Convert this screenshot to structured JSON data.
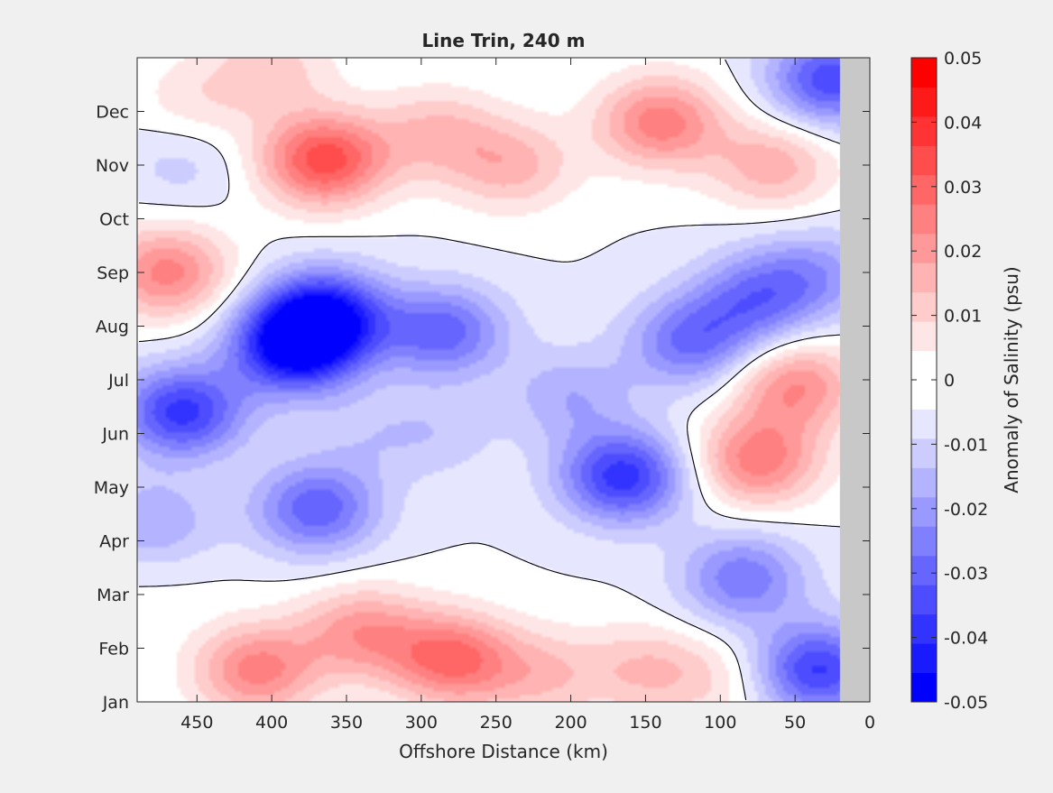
{
  "chart_data": {
    "type": "heatmap",
    "title": "Line Trin, 240 m",
    "xlabel": "Offshore Distance (km)",
    "ylabel": "",
    "xlim": [
      490,
      0
    ],
    "x_reversed": true,
    "xticks": [
      450,
      400,
      350,
      300,
      250,
      200,
      150,
      100,
      50,
      0
    ],
    "yticks": [
      "Jan",
      "Feb",
      "Mar",
      "Apr",
      "May",
      "Jun",
      "Jul",
      "Aug",
      "Sep",
      "Oct",
      "Nov",
      "Dec"
    ],
    "no_data_region_km": [
      0,
      20
    ],
    "colorbar": {
      "label": "Anomaly of Salinity (psu)",
      "range": [
        -0.05,
        0.05
      ],
      "tick_labels": [
        "0.05",
        "0.04",
        "0.03",
        "0.02",
        "0.01",
        "0",
        "-0.01",
        "-0.02",
        "-0.03",
        "-0.04",
        "-0.05"
      ],
      "levels": [
        -0.05,
        -0.045,
        -0.04,
        -0.035,
        -0.03,
        -0.025,
        -0.02,
        -0.015,
        -0.01,
        -0.005,
        0,
        0.005,
        0.01,
        0.015,
        0.02,
        0.025,
        0.03,
        0.035,
        0.04,
        0.045,
        0.05
      ],
      "colors": [
        "#0000ff",
        "#1a1aff",
        "#3333ff",
        "#4d4dff",
        "#6666ff",
        "#8080ff",
        "#9999ff",
        "#b3b3ff",
        "#ccccff",
        "#e6e6ff",
        "#ffffff",
        "#ffffff",
        "#ffe6e6",
        "#ffcccc",
        "#ffb3b3",
        "#ff9999",
        "#ff8080",
        "#ff6666",
        "#ff4d4d",
        "#ff3333",
        "#ff1a1a",
        "#ff0000"
      ]
    },
    "contour_line": "zero anomaly",
    "features": [
      {
        "km": 365,
        "month": 10.1,
        "value": 0.038
      },
      {
        "km": 290,
        "month": 10.6,
        "value": 0.015
      },
      {
        "km": 140,
        "month": 10.8,
        "value": 0.028
      },
      {
        "km": 240,
        "month": 10.0,
        "value": 0.017
      },
      {
        "km": 470,
        "month": 8.0,
        "value": 0.027
      },
      {
        "km": 460,
        "month": 10.0,
        "value": -0.007
      },
      {
        "km": 385,
        "month": 6.6,
        "value": -0.045
      },
      {
        "km": 365,
        "month": 7.2,
        "value": -0.042
      },
      {
        "km": 460,
        "month": 5.4,
        "value": -0.037
      },
      {
        "km": 165,
        "month": 4.2,
        "value": -0.038
      },
      {
        "km": 370,
        "month": 3.6,
        "value": -0.029
      },
      {
        "km": 285,
        "month": 6.9,
        "value": -0.028
      },
      {
        "km": 340,
        "month": 5.0,
        "value": -0.006
      },
      {
        "km": 290,
        "month": 5.0,
        "value": -0.008
      },
      {
        "km": 120,
        "month": 6.7,
        "value": -0.025
      },
      {
        "km": 85,
        "month": 2.3,
        "value": -0.024
      },
      {
        "km": 35,
        "month": 0.6,
        "value": -0.036
      },
      {
        "km": 25,
        "month": 11.6,
        "value": -0.034
      },
      {
        "km": 50,
        "month": 5.9,
        "value": 0.025
      },
      {
        "km": 75,
        "month": 4.5,
        "value": 0.028
      },
      {
        "km": 65,
        "month": 10.0,
        "value": 0.018
      },
      {
        "km": 410,
        "month": 0.6,
        "value": 0.027
      },
      {
        "km": 280,
        "month": 0.8,
        "value": 0.031
      },
      {
        "km": 340,
        "month": 1.3,
        "value": 0.022
      },
      {
        "km": 220,
        "month": 0.5,
        "value": 0.014
      },
      {
        "km": 150,
        "month": 0.6,
        "value": 0.014
      },
      {
        "km": 100,
        "month": 0.4,
        "value": 0.008
      },
      {
        "km": 170,
        "month": 6.6,
        "value": 0.0
      },
      {
        "km": 80,
        "month": 7.4,
        "value": -0.018
      },
      {
        "km": 200,
        "month": 5.7,
        "value": -0.014
      },
      {
        "km": 450,
        "month": 11.2,
        "value": 0.008
      },
      {
        "km": 400,
        "month": 11.8,
        "value": 0.012
      },
      {
        "km": 60,
        "month": 7.8,
        "value": -0.01
      },
      {
        "km": 30,
        "month": 8.0,
        "value": -0.012
      },
      {
        "km": 480,
        "month": 2.5,
        "value": 0.003
      },
      {
        "km": 480,
        "month": 3.3,
        "value": -0.016
      }
    ]
  }
}
